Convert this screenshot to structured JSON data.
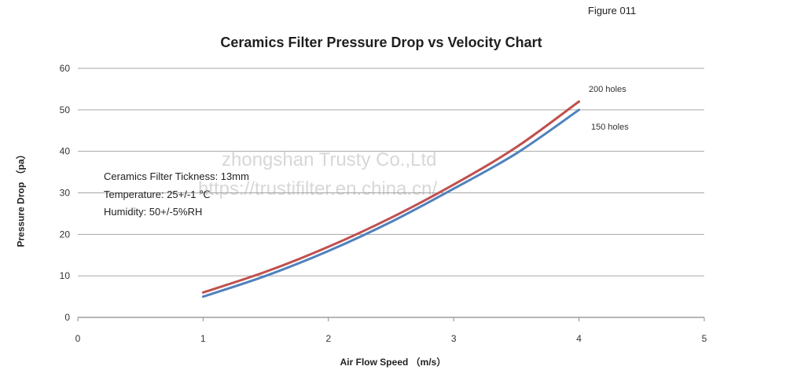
{
  "figure_label": "Figure 011",
  "notes": [
    "Ceramics Filter Tickness: 13mm",
    "Temperature: 25+/-1 ℃",
    "Humidity: 50+/-5%RH"
  ],
  "watermark": {
    "line1": "zhongshan Trusty Co.,Ltd",
    "line2": "https://trustifilter.en.china.cn/"
  },
  "colors": {
    "series_200": "#c0504d",
    "series_150": "#4f81bd",
    "grid": "#a6a6a6",
    "axis": "#8c8c8c"
  },
  "chart_data": {
    "type": "line",
    "title": "Ceramics Filter Pressure Drop vs Velocity Chart",
    "xlabel": "Air Flow Speed   （m/s）",
    "ylabel": "Pressure Drop  （pa）",
    "xlim": [
      0,
      5
    ],
    "ylim": [
      0,
      60
    ],
    "xticks": [
      0,
      1,
      2,
      3,
      4,
      5
    ],
    "yticks": [
      0,
      10,
      20,
      30,
      40,
      50,
      60
    ],
    "grid": true,
    "series": [
      {
        "name": "200 holes",
        "color": "#c0504d",
        "x": [
          1,
          1.5,
          2,
          2.5,
          3,
          3.5,
          4
        ],
        "y": [
          6,
          11,
          17,
          24,
          32,
          41,
          52
        ]
      },
      {
        "name": "150 holes",
        "color": "#4f81bd",
        "x": [
          1,
          1.5,
          2,
          2.5,
          3,
          3.5,
          4
        ],
        "y": [
          5,
          10,
          16,
          23,
          31,
          39.5,
          50
        ]
      }
    ]
  }
}
